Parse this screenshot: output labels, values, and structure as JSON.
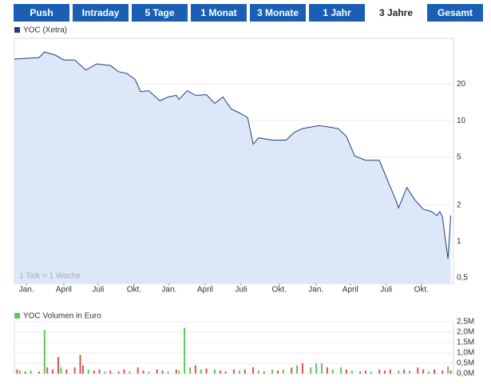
{
  "tabs": [
    "Push",
    "Intraday",
    "5 Tage",
    "1 Monat",
    "3 Monate",
    "1 Jahr",
    "3 Jahre",
    "Gesamt"
  ],
  "active_tab": 6,
  "chart_data": [
    {
      "type": "line",
      "legend": "YOC (Xetra)",
      "annotation": "1 Tick = 1 Woche",
      "log_scale": true,
      "grid": true,
      "xlim": [
        0,
        160
      ],
      "ylim": [
        0.45,
        48
      ],
      "xticks": [
        {
          "value": 4.4,
          "label": "Jan."
        },
        {
          "value": 18,
          "label": "April"
        },
        {
          "value": 30.5,
          "label": "Juli"
        },
        {
          "value": 43.6,
          "label": "Okt."
        },
        {
          "value": 56.4,
          "label": "Jan."
        },
        {
          "value": 69.5,
          "label": "April"
        },
        {
          "value": 82.6,
          "label": "Juli"
        },
        {
          "value": 96.5,
          "label": "Okt."
        },
        {
          "value": 109.9,
          "label": "Jan."
        },
        {
          "value": 122.4,
          "label": "April"
        },
        {
          "value": 135.5,
          "label": "Juli"
        },
        {
          "value": 148.3,
          "label": "Okt."
        }
      ],
      "yticks": [
        {
          "value": 0.5,
          "label": "0,5"
        },
        1,
        2,
        5,
        10,
        20
      ],
      "series": [
        {
          "name": "YOC (Xetra)",
          "color": "#1e3f7a",
          "fill": "#dce7f8",
          "x": [
            0,
            9,
            11,
            15,
            18,
            22,
            26,
            30,
            35,
            38,
            41,
            44,
            46,
            49,
            53,
            56,
            59,
            60,
            63,
            66,
            70,
            73,
            76,
            79,
            82,
            85,
            87,
            89,
            94,
            99,
            102,
            105,
            111,
            114,
            118,
            121,
            124,
            128,
            133,
            136,
            139,
            140,
            143,
            146,
            149,
            152,
            154,
            155,
            156,
            157,
            158,
            159
          ],
          "values": [
            32.3,
            33.3,
            37.0,
            34.8,
            31.8,
            31.8,
            26.2,
            29.5,
            28.6,
            25.4,
            24.6,
            21.9,
            17.4,
            17.7,
            14.6,
            15.7,
            16.2,
            15.0,
            17.7,
            16.2,
            16.4,
            13.9,
            15.7,
            12.5,
            11.6,
            10.6,
            6.4,
            7.2,
            6.9,
            6.9,
            8.0,
            8.6,
            9.1,
            8.9,
            8.6,
            7.4,
            5.1,
            4.7,
            4.7,
            3.2,
            2.2,
            1.9,
            2.8,
            2.2,
            1.85,
            1.77,
            1.64,
            1.77,
            1.6,
            1.05,
            0.72,
            1.64
          ]
        }
      ]
    },
    {
      "type": "bar",
      "legend": "YOC Volumen in Euro",
      "legend_color": "#5cc85c",
      "grid": true,
      "xlim": [
        0,
        160
      ],
      "ylim": [
        0,
        2500000
      ],
      "yticks": [
        {
          "value": 0,
          "label": "0,0M"
        },
        {
          "value": 500000,
          "label": "0,5M"
        },
        {
          "value": 1000000,
          "label": "1,0M"
        },
        {
          "value": 1500000,
          "label": "1,5M"
        },
        {
          "value": 2000000,
          "label": "2,0M"
        },
        {
          "value": 2500000,
          "label": "2,5M"
        }
      ],
      "series": [
        {
          "name": "YOC Volumen in Euro",
          "x": [
            1,
            2,
            4,
            6,
            9,
            11,
            12,
            14,
            16,
            17,
            19,
            22,
            24,
            25,
            27,
            29,
            31,
            33,
            35,
            38,
            40,
            42,
            45,
            47,
            49,
            52,
            54,
            56,
            59,
            60,
            62,
            64,
            66,
            68,
            70,
            73,
            75,
            77,
            80,
            82,
            84,
            87,
            89,
            91,
            94,
            96,
            98,
            101,
            103,
            105,
            108,
            110,
            112,
            114,
            116,
            119,
            121,
            123,
            126,
            128,
            130,
            133,
            135,
            137,
            140,
            142,
            144,
            147,
            149,
            151,
            153,
            156,
            158,
            159
          ],
          "values": [
            200000,
            150000,
            100000,
            150000,
            100000,
            2100000,
            300000,
            200000,
            800000,
            300000,
            200000,
            300000,
            900000,
            400000,
            200000,
            150000,
            200000,
            100000,
            150000,
            100000,
            200000,
            100000,
            300000,
            150000,
            100000,
            200000,
            150000,
            100000,
            200000,
            150000,
            2200000,
            300000,
            400000,
            200000,
            250000,
            200000,
            150000,
            100000,
            200000,
            150000,
            200000,
            300000,
            150000,
            100000,
            200000,
            150000,
            200000,
            300000,
            400000,
            500000,
            300000,
            500000,
            500000,
            300000,
            200000,
            300000,
            200000,
            150000,
            100000,
            150000,
            100000,
            200000,
            150000,
            200000,
            150000,
            200000,
            150000,
            300000,
            200000,
            100000,
            200000,
            150000,
            350000,
            150000
          ],
          "colors": [
            "#d9534f",
            "#5cc85c",
            "#d9534f",
            "#5cc85c",
            "#d9534f",
            "#5cc85c",
            "#d9534f",
            "#d9534f",
            "#d9534f",
            "#5cc85c",
            "#d9534f",
            "#d9534f",
            "#d9534f",
            "#d9534f",
            "#5cc85c",
            "#d9534f",
            "#d9534f",
            "#5cc85c",
            "#d9534f",
            "#d9534f",
            "#d9534f",
            "#5cc85c",
            "#d9534f",
            "#d9534f",
            "#5cc85c",
            "#d9534f",
            "#d9534f",
            "#5cc85c",
            "#d9534f",
            "#5cc85c",
            "#5cc85c",
            "#5cc85c",
            "#d9534f",
            "#5cc85c",
            "#d9534f",
            "#5cc85c",
            "#d9534f",
            "#d9534f",
            "#d9534f",
            "#5cc85c",
            "#d9534f",
            "#d9534f",
            "#5cc85c",
            "#d9534f",
            "#5cc85c",
            "#d9534f",
            "#5cc85c",
            "#d9534f",
            "#5cc85c",
            "#d9534f",
            "#5cc85c",
            "#5cc85c",
            "#5cc85c",
            "#d9534f",
            "#5cc85c",
            "#5cc85c",
            "#d9534f",
            "#5cc85c",
            "#d9534f",
            "#d9534f",
            "#5cc85c",
            "#d9534f",
            "#d9534f",
            "#d9534f",
            "#5cc85c",
            "#d9534f",
            "#5cc85c",
            "#d9534f",
            "#d9534f",
            "#5cc85c",
            "#d9534f",
            "#d9534f",
            "#5cc85c",
            "#d9534f"
          ]
        }
      ]
    }
  ]
}
